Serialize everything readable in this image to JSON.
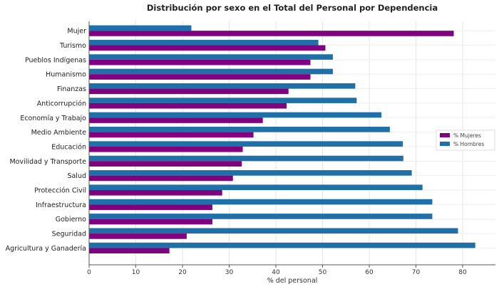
{
  "chart_data": {
    "type": "bar",
    "orientation": "horizontal",
    "title": "Distribución por sexo en el Total del Personal por Dependencia",
    "xlabel": "% del personal",
    "ylabel": "",
    "xlim": [
      0,
      87
    ],
    "xticks": [
      "0",
      "10",
      "20",
      "30",
      "40",
      "50",
      "60",
      "70",
      "80"
    ],
    "grid": true,
    "legend_position": "center-right",
    "categories": [
      "Mujer",
      "Turismo",
      "Pueblos Indígenas",
      "Humanismo",
      "Finanzas",
      "Anticorrupción",
      "Economía y Trabajo",
      "Medio Ambiente",
      "Educación",
      "Movilidad y Transporte",
      "Salud",
      "Protección Civil",
      "Infraestructura",
      "Gobierno",
      "Seguridad",
      "Agricultura y Ganadería"
    ],
    "series": [
      {
        "name": "% Mujeres",
        "color": "#800080",
        "values": [
          78.1,
          50.6,
          47.4,
          47.4,
          42.7,
          42.3,
          37.2,
          35.2,
          32.9,
          32.7,
          30.8,
          28.5,
          26.4,
          26.4,
          20.9,
          17.2
        ]
      },
      {
        "name": "% Hombres",
        "color": "#1f6fa8",
        "values": [
          21.9,
          49.1,
          52.2,
          52.2,
          57.0,
          57.3,
          62.6,
          64.4,
          67.2,
          67.3,
          69.1,
          71.4,
          73.5,
          73.5,
          79.0,
          82.7
        ]
      }
    ]
  }
}
